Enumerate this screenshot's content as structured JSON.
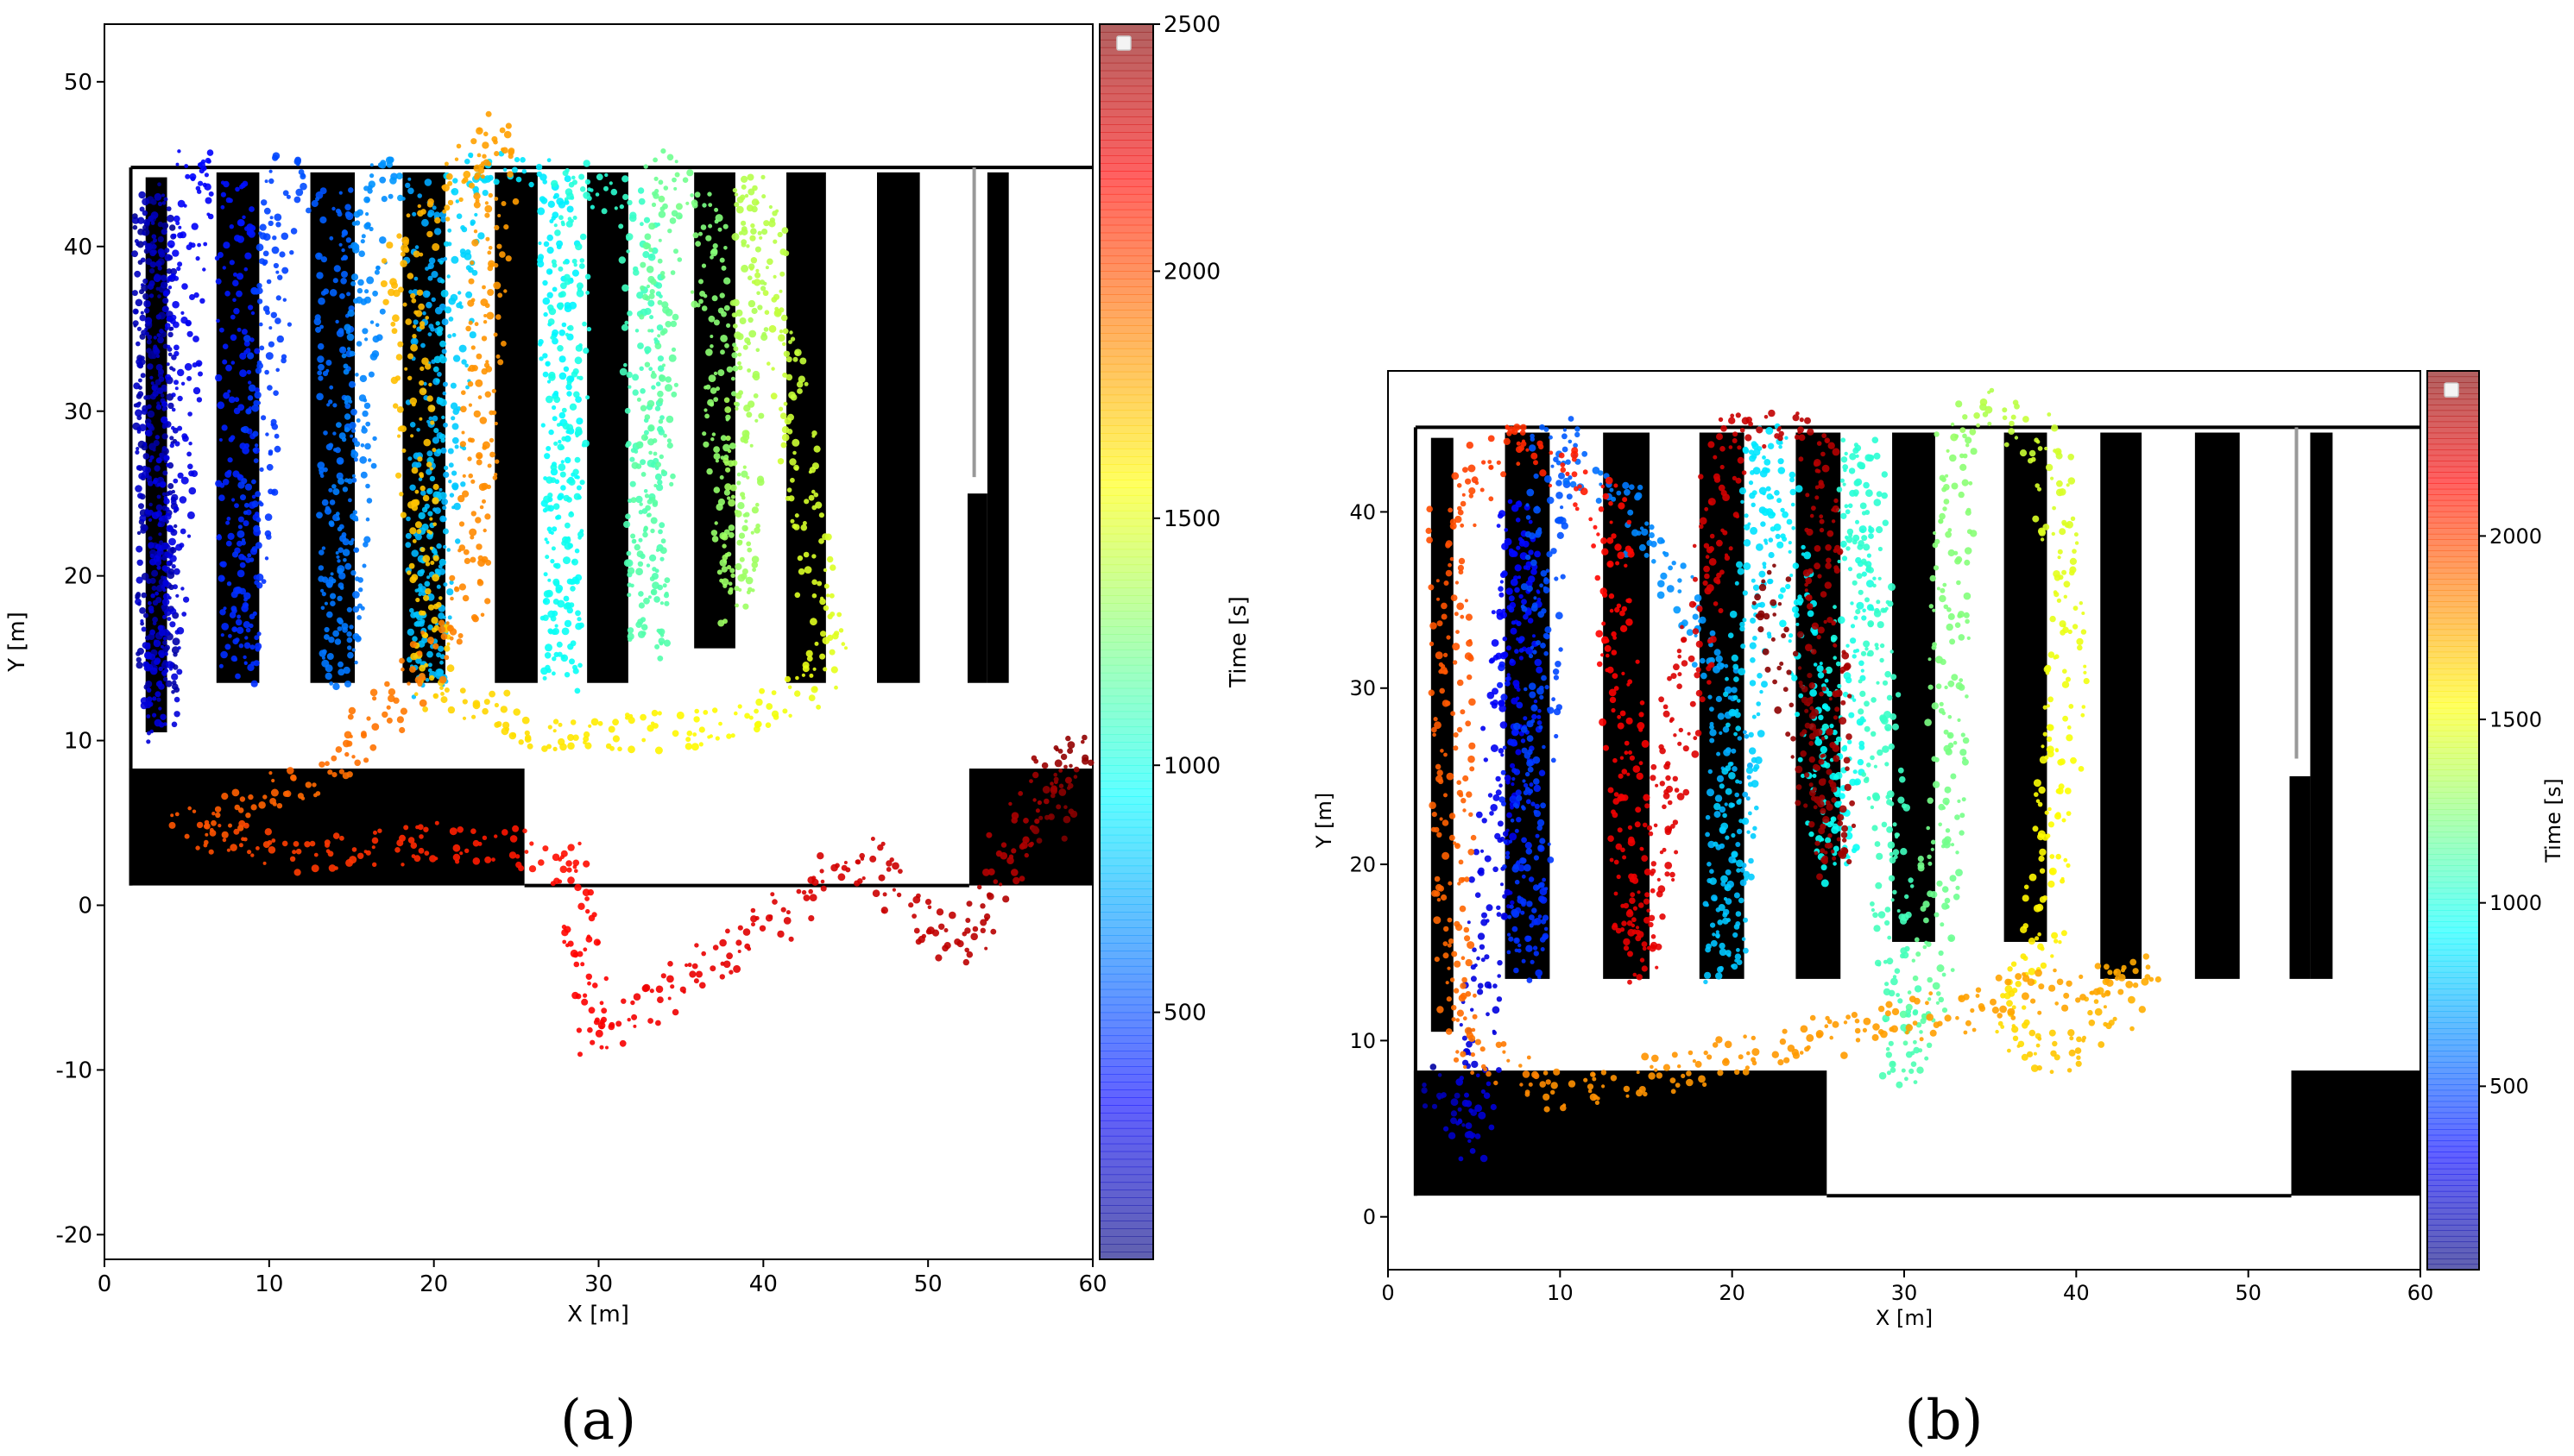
{
  "figure": {
    "panel_labels": [
      "(a)",
      "(b)"
    ]
  },
  "colormap": {
    "name": "jet",
    "stops": [
      "#00007f",
      "#0000ff",
      "#0080ff",
      "#00ffff",
      "#7fff7f",
      "#ffff00",
      "#ff8000",
      "#ff0000",
      "#7f0000"
    ]
  },
  "chart_data": [
    {
      "type": "scatter",
      "panel": "(a)",
      "xlabel": "X [m]",
      "ylabel": "Y [m]",
      "xlim": [
        0,
        60
      ],
      "ylim": [
        -21.5,
        53.5
      ],
      "xticks": [
        0,
        10,
        20,
        30,
        40,
        50,
        60
      ],
      "yticks": [
        -20,
        -10,
        0,
        10,
        20,
        30,
        40,
        50
      ],
      "colorbar": {
        "label": "Time [s]",
        "range": [
          0,
          2500
        ],
        "ticks": [
          500,
          1000,
          1500,
          2000,
          2500
        ]
      },
      "map": {
        "shelves": [
          [
            2.5,
            10.5,
            3.8,
            44.2
          ],
          [
            6.8,
            13.5,
            9.4,
            44.5
          ],
          [
            12.5,
            13.5,
            15.2,
            44.5
          ],
          [
            18.1,
            13.5,
            20.7,
            44.5
          ],
          [
            23.7,
            13.5,
            26.3,
            44.5
          ],
          [
            29.3,
            13.5,
            31.8,
            44.5
          ],
          [
            35.8,
            15.6,
            38.3,
            44.5
          ],
          [
            41.4,
            13.5,
            43.8,
            44.5
          ],
          [
            46.9,
            13.5,
            49.5,
            44.5
          ],
          [
            52.4,
            13.5,
            53.6,
            25.0
          ],
          [
            53.6,
            13.5,
            54.9,
            44.5
          ],
          [
            1.5,
            1.2,
            25.5,
            8.3
          ],
          [
            52.5,
            1.2,
            60,
            8.3
          ]
        ],
        "walls": [
          [
            1.6,
            44.8,
            60,
            44.8
          ],
          [
            1.6,
            44.8,
            1.6,
            1.2
          ],
          [
            25.5,
            1.2,
            52.5,
            1.2
          ]
        ],
        "gray_lines": [
          [
            52.8,
            26.0,
            52.8,
            44.8
          ]
        ]
      },
      "trajectory": [
        {
          "t": 50,
          "x": 3,
          "y": 43
        },
        {
          "t": 100,
          "x": 3.2,
          "y": 13
        },
        {
          "t": 150,
          "x": 3,
          "y": 43
        },
        {
          "t": 220,
          "x": 3.3,
          "y": 11
        },
        {
          "t": 300,
          "x": 5.5,
          "y": 45.5
        },
        {
          "t": 360,
          "x": 8,
          "y": 43
        },
        {
          "t": 420,
          "x": 8.2,
          "y": 14
        },
        {
          "t": 480,
          "x": 10.8,
          "y": 44.6
        },
        {
          "t": 540,
          "x": 14,
          "y": 43
        },
        {
          "t": 600,
          "x": 14.3,
          "y": 14
        },
        {
          "t": 660,
          "x": 16.5,
          "y": 44.8
        },
        {
          "t": 720,
          "x": 19.5,
          "y": 43
        },
        {
          "t": 780,
          "x": 19.6,
          "y": 13
        },
        {
          "t": 840,
          "x": 22,
          "y": 44.8
        },
        {
          "t": 900,
          "x": 27.5,
          "y": 44
        },
        {
          "t": 960,
          "x": 27.8,
          "y": 14
        },
        {
          "t": 1020,
          "x": 28.5,
          "y": 44.7
        },
        {
          "t": 1080,
          "x": 32.5,
          "y": 42
        },
        {
          "t": 1140,
          "x": 33,
          "y": 16
        },
        {
          "t": 1200,
          "x": 34,
          "y": 44.8
        },
        {
          "t": 1260,
          "x": 36.5,
          "y": 42
        },
        {
          "t": 1320,
          "x": 38.5,
          "y": 18
        },
        {
          "t": 1380,
          "x": 39.5,
          "y": 44
        },
        {
          "t": 1440,
          "x": 42,
          "y": 28
        },
        {
          "t": 1500,
          "x": 44,
          "y": 14
        },
        {
          "t": 1560,
          "x": 38,
          "y": 11
        },
        {
          "t": 1620,
          "x": 28,
          "y": 10
        },
        {
          "t": 1680,
          "x": 20,
          "y": 13
        },
        {
          "t": 1740,
          "x": 18,
          "y": 40
        },
        {
          "t": 1800,
          "x": 24,
          "y": 47
        },
        {
          "t": 1860,
          "x": 22,
          "y": 18
        },
        {
          "t": 1920,
          "x": 14,
          "y": 8
        },
        {
          "t": 1980,
          "x": 5,
          "y": 5
        },
        {
          "t": 2040,
          "x": 12,
          "y": 3
        },
        {
          "t": 2100,
          "x": 20,
          "y": 4
        },
        {
          "t": 2160,
          "x": 28,
          "y": 3
        },
        {
          "t": 2200,
          "x": 30,
          "y": -8
        },
        {
          "t": 2250,
          "x": 38,
          "y": -3
        },
        {
          "t": 2300,
          "x": 46,
          "y": 3
        },
        {
          "t": 2350,
          "x": 52,
          "y": -3
        },
        {
          "t": 2400,
          "x": 56,
          "y": 6
        },
        {
          "t": 2450,
          "x": 59,
          "y": 10
        },
        {
          "t": 2500,
          "x": 57,
          "y": 4
        }
      ]
    },
    {
      "type": "scatter",
      "panel": "(b)",
      "xlabel": "X [m]",
      "ylabel": "Y [m]",
      "xlim": [
        0,
        60
      ],
      "ylim": [
        -3,
        48
      ],
      "xticks": [
        0,
        10,
        20,
        30,
        40,
        50,
        60
      ],
      "yticks": [
        0,
        10,
        20,
        30,
        40
      ],
      "colorbar": {
        "label": "Time [s]",
        "range": [
          0,
          2450
        ],
        "ticks": [
          500,
          1000,
          1500,
          2000
        ]
      },
      "map": {
        "shelves": [
          [
            2.5,
            10.5,
            3.8,
            44.2
          ],
          [
            6.8,
            13.5,
            9.4,
            44.5
          ],
          [
            12.5,
            13.5,
            15.2,
            44.5
          ],
          [
            18.1,
            13.5,
            20.7,
            44.5
          ],
          [
            23.7,
            13.5,
            26.3,
            44.5
          ],
          [
            29.3,
            15.6,
            31.8,
            44.5
          ],
          [
            35.8,
            15.6,
            38.3,
            44.5
          ],
          [
            41.4,
            13.5,
            43.8,
            44.5
          ],
          [
            46.9,
            13.5,
            49.5,
            44.5
          ],
          [
            52.4,
            13.5,
            53.6,
            25.0
          ],
          [
            53.6,
            13.5,
            54.9,
            44.5
          ],
          [
            1.5,
            1.2,
            25.5,
            8.3
          ],
          [
            52.5,
            1.2,
            60,
            8.3
          ]
        ],
        "walls": [
          [
            1.6,
            44.8,
            60,
            44.8
          ],
          [
            1.6,
            44.8,
            1.6,
            1.2
          ],
          [
            25.5,
            1.2,
            52.5,
            1.2
          ]
        ],
        "gray_lines": [
          [
            52.8,
            26.0,
            52.8,
            44.8
          ]
        ]
      },
      "trajectory": [
        {
          "t": 80,
          "x": 2,
          "y": 8
        },
        {
          "t": 200,
          "x": 5,
          "y": 4
        },
        {
          "t": 320,
          "x": 7.5,
          "y": 40
        },
        {
          "t": 420,
          "x": 8,
          "y": 14
        },
        {
          "t": 520,
          "x": 9.5,
          "y": 44.7
        },
        {
          "t": 620,
          "x": 14,
          "y": 40
        },
        {
          "t": 700,
          "x": 20,
          "y": 30
        },
        {
          "t": 780,
          "x": 19.5,
          "y": 14
        },
        {
          "t": 860,
          "x": 22,
          "y": 44.7
        },
        {
          "t": 940,
          "x": 26,
          "y": 20
        },
        {
          "t": 1020,
          "x": 27.5,
          "y": 44
        },
        {
          "t": 1100,
          "x": 30,
          "y": 8
        },
        {
          "t": 1180,
          "x": 32,
          "y": 16
        },
        {
          "t": 1260,
          "x": 33,
          "y": 44
        },
        {
          "t": 1340,
          "x": 34.5,
          "y": 45.8
        },
        {
          "t": 1420,
          "x": 38.5,
          "y": 44
        },
        {
          "t": 1500,
          "x": 39.5,
          "y": 30
        },
        {
          "t": 1560,
          "x": 38,
          "y": 16
        },
        {
          "t": 1620,
          "x": 36,
          "y": 10
        },
        {
          "t": 1680,
          "x": 40,
          "y": 9
        },
        {
          "t": 1740,
          "x": 44,
          "y": 14
        },
        {
          "t": 1800,
          "x": 10,
          "y": 7
        },
        {
          "t": 1880,
          "x": 4,
          "y": 10
        },
        {
          "t": 1960,
          "x": 3.5,
          "y": 40
        },
        {
          "t": 2040,
          "x": 8,
          "y": 44.8
        },
        {
          "t": 2120,
          "x": 13,
          "y": 40
        },
        {
          "t": 2200,
          "x": 14.5,
          "y": 14
        },
        {
          "t": 2260,
          "x": 20,
          "y": 44.8
        },
        {
          "t": 2320,
          "x": 25,
          "y": 44.8
        },
        {
          "t": 2380,
          "x": 26,
          "y": 20
        },
        {
          "t": 2440,
          "x": 22,
          "y": 36
        }
      ]
    }
  ]
}
